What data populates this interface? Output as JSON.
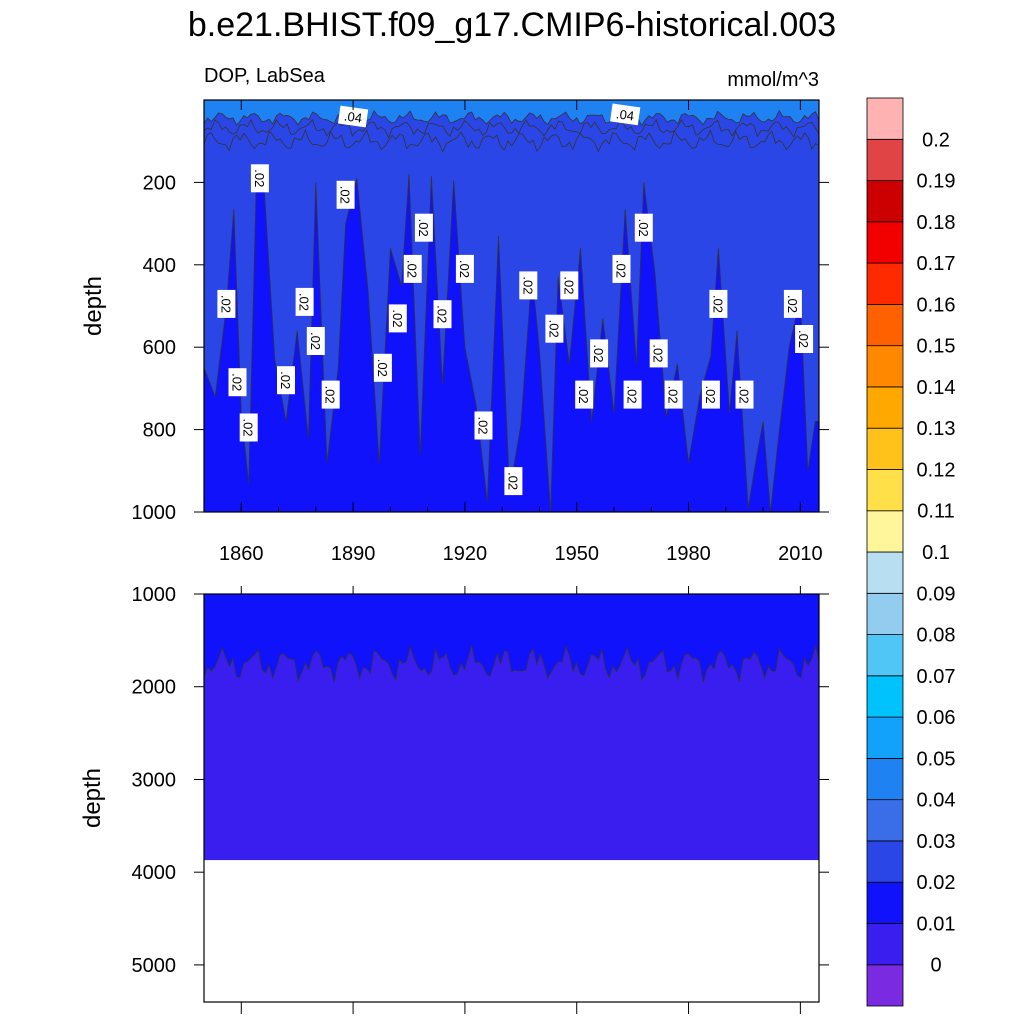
{
  "chart_data": [
    {
      "type": "heatmap",
      "title": "b.e21.BHIST.f09_g17.CMIP6-historical.003",
      "left_label": "DOP, LabSea",
      "right_label": "mmol/m^3",
      "ylabel": "depth",
      "xlabel": "",
      "xlim": [
        1850,
        2015
      ],
      "ylim": [
        1000,
        0
      ],
      "xticks": [
        "1860",
        "1890",
        "1920",
        "1950",
        "1980",
        "2010"
      ],
      "yticks": [
        "200",
        "400",
        "600",
        "800",
        "1000"
      ],
      "contour_labels": [
        {
          "text": ".04",
          "year": 1890,
          "depth": 40
        },
        {
          "text": ".04",
          "year": 1963,
          "depth": 35
        },
        {
          "text": ".02",
          "year": 1856,
          "depth": 495
        },
        {
          "text": ".02",
          "year": 1859,
          "depth": 685
        },
        {
          "text": ".02",
          "year": 1862,
          "depth": 795
        },
        {
          "text": ".02",
          "year": 1865,
          "depth": 190
        },
        {
          "text": ".02",
          "year": 1872,
          "depth": 680
        },
        {
          "text": ".02",
          "year": 1877,
          "depth": 490
        },
        {
          "text": ".02",
          "year": 1880,
          "depth": 585
        },
        {
          "text": ".02",
          "year": 1884,
          "depth": 715
        },
        {
          "text": ".02",
          "year": 1888,
          "depth": 230
        },
        {
          "text": ".02",
          "year": 1898,
          "depth": 650
        },
        {
          "text": ".02",
          "year": 1902,
          "depth": 530
        },
        {
          "text": ".02",
          "year": 1906,
          "depth": 410
        },
        {
          "text": ".02",
          "year": 1909,
          "depth": 310
        },
        {
          "text": ".02",
          "year": 1914,
          "depth": 520
        },
        {
          "text": ".02",
          "year": 1920,
          "depth": 410
        },
        {
          "text": ".02",
          "year": 1925,
          "depth": 790
        },
        {
          "text": ".02",
          "year": 1933,
          "depth": 925
        },
        {
          "text": ".02",
          "year": 1937,
          "depth": 450
        },
        {
          "text": ".02",
          "year": 1944,
          "depth": 555
        },
        {
          "text": ".02",
          "year": 1948,
          "depth": 450
        },
        {
          "text": ".02",
          "year": 1952,
          "depth": 715
        },
        {
          "text": ".02",
          "year": 1956,
          "depth": 615
        },
        {
          "text": ".02",
          "year": 1962,
          "depth": 410
        },
        {
          "text": ".02",
          "year": 1965,
          "depth": 715
        },
        {
          "text": ".02",
          "year": 1968,
          "depth": 310
        },
        {
          "text": ".02",
          "year": 1972,
          "depth": 615
        },
        {
          "text": ".02",
          "year": 1976,
          "depth": 715
        },
        {
          "text": ".02",
          "year": 1986,
          "depth": 715
        },
        {
          "text": ".02",
          "year": 1988,
          "depth": 495
        },
        {
          "text": ".02",
          "year": 1995,
          "depth": 715
        },
        {
          "text": ".02",
          "year": 2008,
          "depth": 495
        },
        {
          "text": ".02",
          "year": 2011,
          "depth": 580
        }
      ]
    },
    {
      "type": "heatmap",
      "title": "",
      "ylabel": "depth",
      "xlim": [
        1850,
        2015
      ],
      "ylim": [
        5400,
        1000
      ],
      "yticks": [
        "1000",
        "2000",
        "3000",
        "4000",
        "5000"
      ],
      "seafloor_depth": 3870
    }
  ],
  "colorbar": {
    "labels": [
      "0",
      "0.01",
      "0.02",
      "0.03",
      "0.04",
      "0.05",
      "0.06",
      "0.07",
      "0.08",
      "0.09",
      "0.1",
      "0.11",
      "0.12",
      "0.13",
      "0.14",
      "0.15",
      "0.16",
      "0.17",
      "0.18",
      "0.19",
      "0.2"
    ],
    "colors": [
      "#7a2ae0",
      "#3a1ef0",
      "#0f12fb",
      "#2b46e6",
      "#3a6ee8",
      "#1e82f2",
      "#12a2fc",
      "#00c2fc",
      "#50c6f6",
      "#92ccee",
      "#b8def2",
      "#fff59a",
      "#ffe048",
      "#ffc21a",
      "#ffa800",
      "#ff8800",
      "#ff6000",
      "#ff2a00",
      "#f20000",
      "#cc0000",
      "#e04444",
      "#ffb2b2"
    ]
  }
}
